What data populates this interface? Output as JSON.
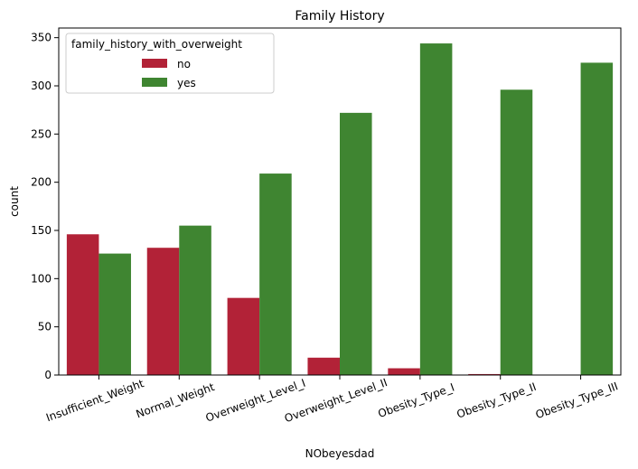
{
  "chart_data": {
    "type": "bar",
    "title": "Family History",
    "xlabel": "NObeyesdad",
    "ylabel": "count",
    "ylim": [
      0,
      360
    ],
    "yticks": [
      0,
      50,
      100,
      150,
      200,
      250,
      300,
      350
    ],
    "categories": [
      "Insufficient_Weight",
      "Normal_Weight",
      "Overweight_Level_I",
      "Overweight_Level_II",
      "Obesity_Type_I",
      "Obesity_Type_II",
      "Obesity_Type_III"
    ],
    "legend": {
      "title": "family_history_with_overweight",
      "placement": "top-left"
    },
    "series": [
      {
        "name": "no",
        "color": "#b22237",
        "values": [
          146,
          132,
          80,
          18,
          7,
          1,
          0
        ]
      },
      {
        "name": "yes",
        "color": "#3f8531",
        "values": [
          126,
          155,
          209,
          272,
          344,
          296,
          324
        ]
      }
    ],
    "grid": false
  }
}
